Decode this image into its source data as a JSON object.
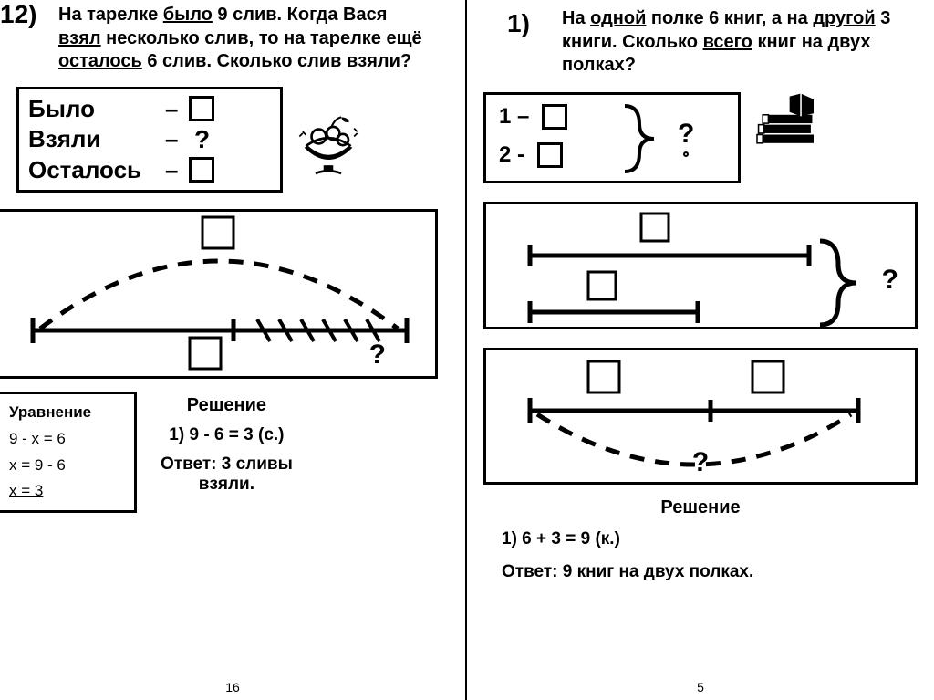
{
  "left": {
    "number": "12)",
    "problem_html": "На тарелке <u>было</u> 9 слив. Когда Вася <u>взял</u> несколько слив, то на тарелке ещё <u>осталось</u> 6 слив. Сколько слив взяли?",
    "rows": {
      "r1_label": "Было",
      "r2_label": "Взяли",
      "r3_label": "Осталось",
      "dash": "–",
      "qmark": "?"
    },
    "diagram_q": "?",
    "equation": {
      "title": "Уравнение",
      "l1": "9 - x = 6",
      "l2": "x = 9 - 6",
      "l3": "x = 3"
    },
    "solution": {
      "title": "Решение",
      "step": "1) 9 - 6 = 3 (с.)",
      "answer_l1": "Ответ: 3 сливы",
      "answer_l2": "взяли."
    },
    "page_no": "16"
  },
  "right": {
    "number": "1)",
    "problem_html": "На <u>одной</u> полке 6 книг, а на <u>другой</u> 3 книги. Сколько <u>всего</u> книг на двух полках?",
    "box1": {
      "l1": "1 –",
      "l2": "2 -",
      "q": "?"
    },
    "diagram2_q": "?",
    "diagram3_q": "?",
    "solution": {
      "title": "Решение",
      "step": "1) 6 + 3 = 9 (к.)",
      "answer": "Ответ: 9 книг на двух полках."
    },
    "page_no": "5"
  },
  "style": {
    "border_w": 3,
    "text_color": "#000000",
    "bg": "#ffffff"
  }
}
